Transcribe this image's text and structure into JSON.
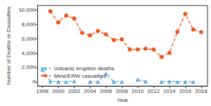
{
  "chart_data": {
    "type": "line",
    "x_label": "Year",
    "y_label": "Number of Deaths or Casualties",
    "x": [
      1998,
      1999,
      2000,
      2001,
      2002,
      2003,
      2004,
      2005,
      2006,
      2007,
      2008,
      2009,
      2010,
      2011,
      2012,
      2013,
      2014,
      2015,
      2016,
      2017,
      2018
    ],
    "series": [
      {
        "name": "Volcanic eruption deaths",
        "color": "#5aa9e6",
        "marker": "triangle",
        "line_style": "dashed",
        "values": [
          1700,
          50,
          0,
          0,
          100,
          null,
          0,
          0,
          1150,
          0,
          0,
          null,
          300,
          50,
          null,
          0,
          50,
          0,
          0,
          0,
          null
        ]
      },
      {
        "name": "Mine/ERW casualties",
        "color": "#f0521e",
        "marker": "circle",
        "line_style": "dashed",
        "values": [
          null,
          9800,
          8250,
          9200,
          8800,
          6800,
          6450,
          7050,
          6600,
          5800,
          5900,
          4500,
          4500,
          4600,
          4500,
          3450,
          4000,
          6950,
          9450,
          7250,
          6900
        ]
      }
    ],
    "xlim": [
      1997.4,
      2018.8
    ],
    "xticks": [
      1998,
      2000,
      2002,
      2004,
      2006,
      2008,
      2010,
      2012,
      2014,
      2016,
      2018
    ],
    "ylim": [
      -600,
      10600
    ],
    "yticks": [
      0,
      {
        "value": 2000,
        "label": "2,000"
      },
      {
        "value": 4000,
        "label": "4,000"
      },
      {
        "value": 6000,
        "label": "6,000"
      },
      {
        "value": 8000,
        "label": "8,000"
      },
      {
        "value": 10000,
        "label": "10,000"
      }
    ],
    "grid": false,
    "legend": "lower left"
  }
}
